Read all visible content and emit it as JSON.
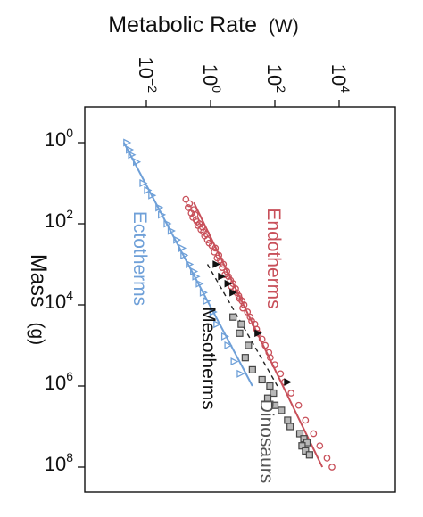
{
  "chart_data": {
    "type": "scatter",
    "xlabel": "Mass",
    "xlabel_unit": "(g)",
    "ylabel": "Metabolic Rate",
    "ylabel_unit": "(W)",
    "xscale": "log",
    "yscale": "log",
    "xlim": [
      1,
      100000000
    ],
    "ylim": [
      0.001,
      100000
    ],
    "grid": false,
    "orientation": "figure rotated 90° clockwise: mass increases downward, metabolic rate increases to the right",
    "x_ticks": [
      {
        "base": "10",
        "exp": "0",
        "value": 1
      },
      {
        "base": "10",
        "exp": "2",
        "value": 100
      },
      {
        "base": "10",
        "exp": "4",
        "value": 10000
      },
      {
        "base": "10",
        "exp": "6",
        "value": 1000000
      },
      {
        "base": "10",
        "exp": "8",
        "value": 100000000
      }
    ],
    "y_ticks": [
      {
        "base": "10",
        "exp": "−2",
        "value": 0.01
      },
      {
        "base": "10",
        "exp": "0",
        "value": 1
      },
      {
        "base": "10",
        "exp": "2",
        "value": 100
      },
      {
        "base": "10",
        "exp": "4",
        "value": 10000
      }
    ],
    "series": [
      {
        "name": "Endotherms",
        "color": "#c8505a",
        "marker": "circle-open",
        "points": [
          [
            25,
            0.17
          ],
          [
            32,
            0.22
          ],
          [
            40,
            0.2
          ],
          [
            45,
            0.3
          ],
          [
            55,
            0.25
          ],
          [
            60,
            0.33
          ],
          [
            70,
            0.28
          ],
          [
            80,
            0.35
          ],
          [
            90,
            0.38
          ],
          [
            100,
            0.45
          ],
          [
            110,
            0.4
          ],
          [
            120,
            0.55
          ],
          [
            140,
            0.5
          ],
          [
            160,
            0.6
          ],
          [
            180,
            0.75
          ],
          [
            200,
            0.65
          ],
          [
            250,
            0.8
          ],
          [
            300,
            0.9
          ],
          [
            350,
            1.1
          ],
          [
            400,
            1.4
          ],
          [
            500,
            1.3
          ],
          [
            600,
            1.8
          ],
          [
            700,
            1.6
          ],
          [
            800,
            2.0
          ],
          [
            1000,
            2.5
          ],
          [
            1200,
            2.3
          ],
          [
            1500,
            3.2
          ],
          [
            1800,
            2.8
          ],
          [
            2000,
            3.6
          ],
          [
            2500,
            4.2
          ],
          [
            3000,
            5.0
          ],
          [
            3500,
            4.4
          ],
          [
            4000,
            6.0
          ],
          [
            5000,
            6.5
          ],
          [
            6000,
            7.5
          ],
          [
            7000,
            8.0
          ],
          [
            8000,
            9.5
          ],
          [
            10000,
            11
          ],
          [
            12000,
            10
          ],
          [
            15000,
            14
          ],
          [
            20000,
            17
          ],
          [
            25000,
            19
          ],
          [
            30000,
            24
          ],
          [
            40000,
            27
          ],
          [
            50000,
            30
          ],
          [
            70000,
            40
          ],
          [
            100000,
            50
          ],
          [
            150000,
            65
          ],
          [
            200000,
            72
          ],
          [
            300000,
            100
          ],
          [
            500000,
            150
          ],
          [
            800000,
            200
          ],
          [
            1500000,
            320
          ],
          [
            3000000,
            550
          ],
          [
            7000000,
            900
          ],
          [
            15000000,
            1600
          ],
          [
            30000000,
            2500
          ],
          [
            60000000,
            4200
          ],
          [
            100000000,
            6000
          ]
        ],
        "fit": {
          "x": [
            30,
            100000000
          ],
          "y": [
            0.3,
            3000
          ]
        }
      },
      {
        "name": "Ectotherms",
        "color": "#6fa0d8",
        "marker": "triangle-open",
        "points": [
          [
            1,
            0.0025
          ],
          [
            1.5,
            0.003
          ],
          [
            2,
            0.0035
          ],
          [
            3,
            0.005
          ],
          [
            10,
            0.008
          ],
          [
            15,
            0.011
          ],
          [
            20,
            0.015
          ],
          [
            40,
            0.025
          ],
          [
            60,
            0.03
          ],
          [
            100,
            0.045
          ],
          [
            150,
            0.06
          ],
          [
            250,
            0.09
          ],
          [
            400,
            0.13
          ],
          [
            600,
            0.15
          ],
          [
            1000,
            0.22
          ],
          [
            1500,
            0.3
          ],
          [
            2000,
            0.35
          ],
          [
            3000,
            0.45
          ],
          [
            5000,
            0.6
          ],
          [
            8000,
            0.75
          ],
          [
            15000,
            1.2
          ],
          [
            30000,
            1.6
          ],
          [
            60000,
            2.8
          ],
          [
            100000,
            3.5
          ],
          [
            250000,
            5.5
          ],
          [
            500000,
            8.5
          ]
        ],
        "fit": {
          "x": [
            1,
            1000000
          ],
          "y": [
            0.002,
            20
          ]
        }
      },
      {
        "name": "Mesotherms",
        "color": "#111111",
        "marker": "triangle-filled",
        "points": [
          [
            1000,
            1.5
          ],
          [
            2000,
            2.2
          ],
          [
            3000,
            3.5
          ],
          [
            5000,
            5.0
          ],
          [
            50000,
            30
          ],
          [
            800000,
            250
          ]
        ],
        "fit": {
          "x": [
            1000,
            1000000
          ],
          "y": [
            0.8,
            120
          ]
        }
      },
      {
        "name": "Dinosaurs",
        "color": "#555555",
        "marker": "square-gray",
        "points": [
          [
            20000,
            5
          ],
          [
            30000,
            9
          ],
          [
            50000,
            8
          ],
          [
            100000,
            15
          ],
          [
            200000,
            12
          ],
          [
            400000,
            20
          ],
          [
            700000,
            40
          ],
          [
            1000000,
            70
          ],
          [
            1500000,
            90
          ],
          [
            2000000,
            60
          ],
          [
            3000000,
            100
          ],
          [
            4000000,
            160
          ],
          [
            7000000,
            250
          ],
          [
            10000000,
            300
          ],
          [
            15000000,
            600
          ],
          [
            20000000,
            800
          ],
          [
            25000000,
            1000
          ],
          [
            30000000,
            700
          ],
          [
            40000000,
            900
          ],
          [
            50000000,
            1200
          ]
        ]
      }
    ]
  }
}
